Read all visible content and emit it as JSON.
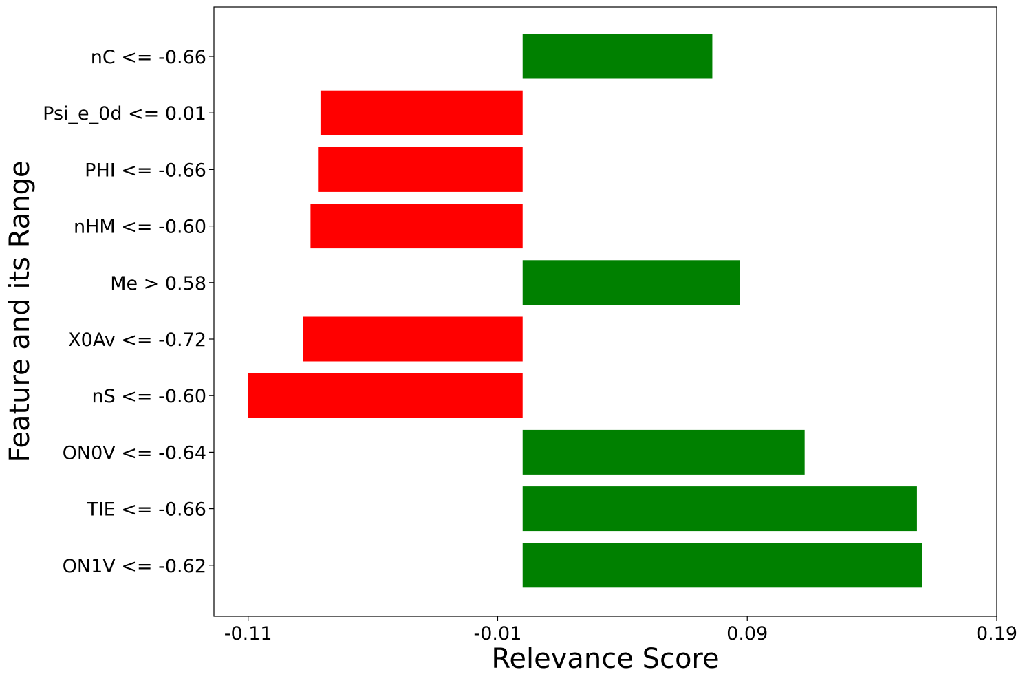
{
  "chart_data": {
    "type": "bar",
    "orientation": "horizontal",
    "title": "",
    "xlabel": "Relevance Score",
    "ylabel": "Feature and its Range",
    "xlim": [
      -0.1237,
      0.19
    ],
    "xticks": [
      -0.11,
      -0.01,
      0.09,
      0.19
    ],
    "xtick_labels": [
      "-0.11",
      "-0.01",
      "0.09",
      "0.19"
    ],
    "grid": false,
    "legend": "none",
    "categories": [
      "ON1V <= -0.62",
      "TIE <= -0.66",
      "ON0V <= -0.64",
      "nS <= -0.60",
      "X0Av <= -0.72",
      "Me > 0.58",
      "nHM <= -0.60",
      "PHI <= -0.66",
      "Psi_e_0d <= 0.01",
      "nC <= -0.66"
    ],
    "values": [
      0.16,
      0.158,
      0.113,
      -0.11,
      -0.088,
      0.087,
      -0.085,
      -0.082,
      -0.081,
      0.076
    ],
    "positive_color": "#008000",
    "negative_color": "#ff0000"
  }
}
